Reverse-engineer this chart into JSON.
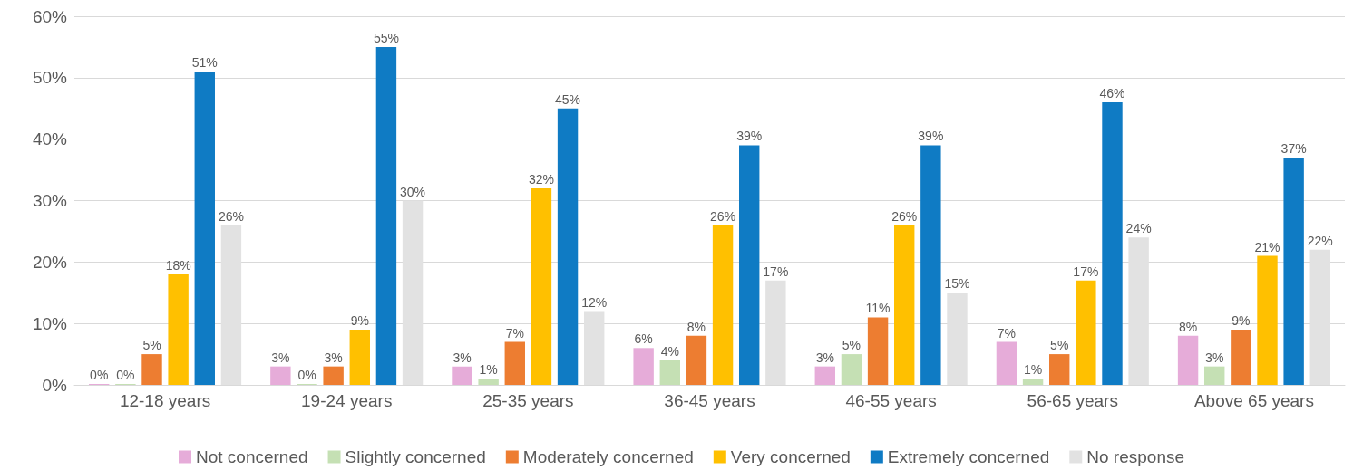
{
  "chart_data": {
    "type": "bar",
    "categories": [
      "12-18 years",
      "19-24 years",
      "25-35 years",
      "36-45 years",
      "46-55 years",
      "56-65 years",
      "Above 65 years"
    ],
    "series": [
      {
        "name": "Not concerned",
        "color": "#e6acd9",
        "values": [
          0,
          3,
          3,
          6,
          3,
          7,
          8
        ],
        "value_labels": [
          "0%",
          "3%",
          "3%",
          "6%",
          "3%",
          "7%",
          "8%"
        ]
      },
      {
        "name": "Slightly concerned",
        "color": "#c5e0b4",
        "values": [
          0,
          0,
          1,
          4,
          5,
          1,
          3
        ],
        "value_labels": [
          "0%",
          "0%",
          "1%",
          "4%",
          "5%",
          "1%",
          "3%"
        ]
      },
      {
        "name": "Moderately concerned",
        "color": "#ed7d31",
        "values": [
          5,
          3,
          7,
          8,
          11,
          5,
          9
        ],
        "value_labels": [
          "5%",
          "3%",
          "7%",
          "8%",
          "11%",
          "5%",
          "9%"
        ]
      },
      {
        "name": "Very concerned",
        "color": "#ffc000",
        "values": [
          18,
          9,
          32,
          26,
          26,
          17,
          21
        ],
        "value_labels": [
          "18%",
          "9%",
          "32%",
          "26%",
          "26%",
          "17%",
          "21%"
        ]
      },
      {
        "name": "Extremely concerned",
        "color": "#0f7bc4",
        "values": [
          51,
          55,
          45,
          39,
          39,
          46,
          37
        ],
        "value_labels": [
          "51%",
          "55%",
          "45%",
          "39%",
          "39%",
          "46%",
          "37%"
        ]
      },
      {
        "name": "No response",
        "color": "#e2e2e2",
        "values": [
          26,
          30,
          12,
          17,
          15,
          24,
          22
        ],
        "value_labels": [
          "26%",
          "30%",
          "12%",
          "17%",
          "15%",
          "24%",
          "22%"
        ]
      }
    ],
    "ylim": [
      0,
      60
    ],
    "yticks": [
      {
        "value": 0,
        "label": "0%"
      },
      {
        "value": 10,
        "label": "10%"
      },
      {
        "value": 20,
        "label": "20%"
      },
      {
        "value": 30,
        "label": "30%"
      },
      {
        "value": 40,
        "label": "40%"
      },
      {
        "value": 50,
        "label": "50%"
      },
      {
        "value": 60,
        "label": "60%"
      }
    ],
    "grid": "y",
    "legend": "bottom"
  }
}
